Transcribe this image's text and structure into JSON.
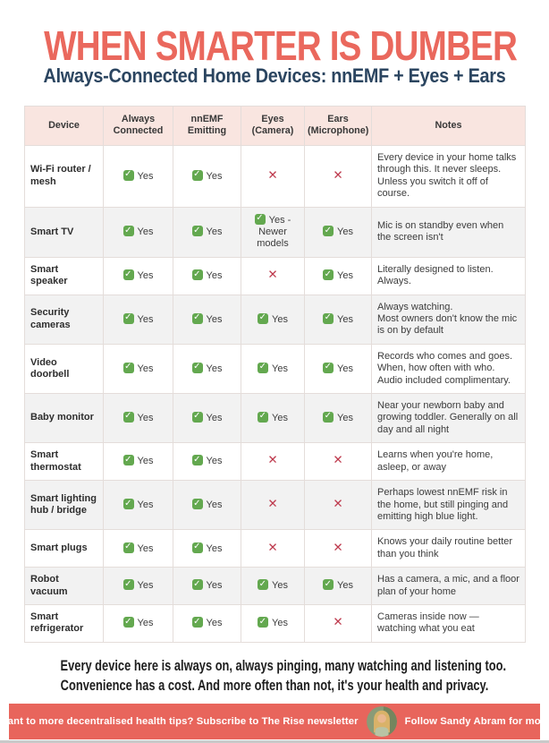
{
  "title": "WHEN SMARTER IS DUMBER",
  "subtitle": "Always-Connected Home Devices: nnEMF + Eyes + Ears",
  "colors": {
    "accent_coral": "#E8655C",
    "title_coral": "#EA685D",
    "subtitle_navy": "#2B4560",
    "header_bg": "#F9E5E0",
    "stripe_gray": "#F2F2F2",
    "check_green": "#63A84F",
    "cross_red": "#BE3A4D"
  },
  "table": {
    "columns": [
      "Device",
      "Always Connected",
      "nnEMF Emitting",
      "Eyes (Camera)",
      "Ears (Microphone)",
      "Notes"
    ],
    "rows": [
      {
        "device": "Wi-Fi router / mesh",
        "always_connected": {
          "value": "yes",
          "label": "Yes"
        },
        "nnemf_emitting": {
          "value": "yes",
          "label": "Yes"
        },
        "eyes_camera": {
          "value": "no",
          "label": ""
        },
        "ears_microphone": {
          "value": "no",
          "label": ""
        },
        "notes": "Every device in your home talks through this. It never sleeps. Unless you switch it off of course."
      },
      {
        "device": "Smart TV",
        "always_connected": {
          "value": "yes",
          "label": "Yes"
        },
        "nnemf_emitting": {
          "value": "yes",
          "label": "Yes"
        },
        "eyes_camera": {
          "value": "yes",
          "label": "Yes - Newer models"
        },
        "ears_microphone": {
          "value": "yes",
          "label": "Yes"
        },
        "notes": "Mic is on standby even when the screen isn't"
      },
      {
        "device": "Smart speaker",
        "always_connected": {
          "value": "yes",
          "label": "Yes"
        },
        "nnemf_emitting": {
          "value": "yes",
          "label": "Yes"
        },
        "eyes_camera": {
          "value": "no",
          "label": ""
        },
        "ears_microphone": {
          "value": "yes",
          "label": "Yes"
        },
        "notes": "Literally designed to listen. Always."
      },
      {
        "device": "Security cameras",
        "always_connected": {
          "value": "yes",
          "label": "Yes"
        },
        "nnemf_emitting": {
          "value": "yes",
          "label": "Yes"
        },
        "eyes_camera": {
          "value": "yes",
          "label": "Yes"
        },
        "ears_microphone": {
          "value": "yes",
          "label": "Yes"
        },
        "notes": "Always watching.\nMost owners don't know the mic is on by default"
      },
      {
        "device": "Video doorbell",
        "always_connected": {
          "value": "yes",
          "label": "Yes"
        },
        "nnemf_emitting": {
          "value": "yes",
          "label": "Yes"
        },
        "eyes_camera": {
          "value": "yes",
          "label": "Yes"
        },
        "ears_microphone": {
          "value": "yes",
          "label": "Yes"
        },
        "notes": "Records who comes and goes. When, how often with who. Audio included complimentary."
      },
      {
        "device": "Baby monitor",
        "always_connected": {
          "value": "yes",
          "label": "Yes"
        },
        "nnemf_emitting": {
          "value": "yes",
          "label": "Yes"
        },
        "eyes_camera": {
          "value": "yes",
          "label": "Yes"
        },
        "ears_microphone": {
          "value": "yes",
          "label": "Yes"
        },
        "notes": "Near your newborn baby and growing toddler. Generally on all day and all night"
      },
      {
        "device": "Smart thermostat",
        "always_connected": {
          "value": "yes",
          "label": "Yes"
        },
        "nnemf_emitting": {
          "value": "yes",
          "label": "Yes"
        },
        "eyes_camera": {
          "value": "no",
          "label": ""
        },
        "ears_microphone": {
          "value": "no",
          "label": ""
        },
        "notes": "Learns when you're home, asleep, or away"
      },
      {
        "device": "Smart lighting hub / bridge",
        "always_connected": {
          "value": "yes",
          "label": "Yes"
        },
        "nnemf_emitting": {
          "value": "yes",
          "label": "Yes"
        },
        "eyes_camera": {
          "value": "no",
          "label": ""
        },
        "ears_microphone": {
          "value": "no",
          "label": ""
        },
        "notes": "Perhaps lowest nnEMF risk in the home, but still pinging and emitting high blue light."
      },
      {
        "device": "Smart plugs",
        "always_connected": {
          "value": "yes",
          "label": "Yes"
        },
        "nnemf_emitting": {
          "value": "yes",
          "label": "Yes"
        },
        "eyes_camera": {
          "value": "no",
          "label": ""
        },
        "ears_microphone": {
          "value": "no",
          "label": ""
        },
        "notes": "Knows your daily routine better than you think"
      },
      {
        "device": "Robot vacuum",
        "always_connected": {
          "value": "yes",
          "label": "Yes"
        },
        "nnemf_emitting": {
          "value": "yes",
          "label": "Yes"
        },
        "eyes_camera": {
          "value": "yes",
          "label": "Yes"
        },
        "ears_microphone": {
          "value": "yes",
          "label": "Yes"
        },
        "notes": "Has a camera, a mic, and a floor plan of your home"
      },
      {
        "device": "Smart refrigerator",
        "always_connected": {
          "value": "yes",
          "label": "Yes"
        },
        "nnemf_emitting": {
          "value": "yes",
          "label": "Yes"
        },
        "eyes_camera": {
          "value": "yes",
          "label": "Yes"
        },
        "ears_microphone": {
          "value": "no",
          "label": ""
        },
        "notes": "Cameras inside now — watching what you eat"
      }
    ]
  },
  "footer": {
    "line1": "Every device here is always on, always pinging, many watching and listening too.",
    "line2": "Convenience has a cost. And more often than not, it's your health and privacy."
  },
  "banner": {
    "left_text": "Want to more decentralised health tips? Subscribe to The Rise newsletter",
    "right_text": "Follow Sandy Abram for more",
    "avatar": "sandy-abram-photo"
  }
}
